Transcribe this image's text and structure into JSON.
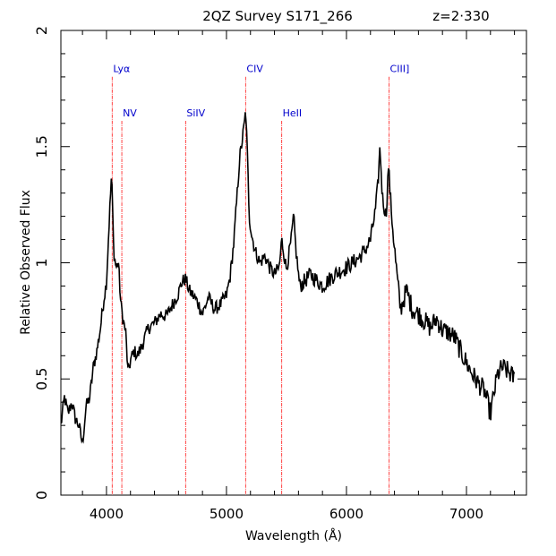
{
  "chart_data": {
    "type": "line",
    "title": "2QZ Survey S171_266",
    "redshift_label": "z=2·330",
    "xlabel": "Wavelength (Å)",
    "ylabel": "Relative Observed Flux",
    "xlim": [
      3620,
      7500
    ],
    "ylim": [
      0,
      2
    ],
    "xticks_major": [
      4000,
      5000,
      6000,
      7000
    ],
    "xtick_labels": [
      "4000",
      "5000",
      "6000",
      "7000"
    ],
    "yticks_major": [
      0,
      0.5,
      1,
      1.5,
      2
    ],
    "ytick_labels": [
      "0",
      "0.5",
      "1",
      "1.5",
      "2"
    ],
    "grid": false,
    "line_color": "#000000",
    "marker_color": "#ff4444",
    "label_color": "#0000cc",
    "emission_lines": [
      {
        "label": "Lyα",
        "x": 4048,
        "label_y": 1.82
      },
      {
        "label": "NV",
        "x": 4128,
        "label_y": 1.63
      },
      {
        "label": "SiIV",
        "x": 4660,
        "label_y": 1.63
      },
      {
        "label": "CIV",
        "x": 5160,
        "label_y": 1.82
      },
      {
        "label": "HeII",
        "x": 5460,
        "label_y": 1.63
      },
      {
        "label": "CIII]",
        "x": 6355,
        "label_y": 1.82
      }
    ],
    "spectrum": {
      "x": [
        3620,
        3650,
        3680,
        3710,
        3740,
        3770,
        3800,
        3830,
        3860,
        3890,
        3920,
        3950,
        3980,
        4000,
        4020,
        4040,
        4048,
        4060,
        4080,
        4100,
        4120,
        4140,
        4160,
        4180,
        4200,
        4230,
        4260,
        4300,
        4350,
        4400,
        4450,
        4500,
        4550,
        4600,
        4630,
        4660,
        4690,
        4720,
        4760,
        4800,
        4850,
        4900,
        4950,
        5000,
        5030,
        5060,
        5090,
        5110,
        5130,
        5150,
        5160,
        5175,
        5190,
        5210,
        5240,
        5280,
        5320,
        5360,
        5400,
        5440,
        5460,
        5500,
        5540,
        5560,
        5580,
        5610,
        5650,
        5700,
        5800,
        5900,
        6000,
        6050,
        6100,
        6150,
        6200,
        6240,
        6260,
        6280,
        6300,
        6330,
        6350,
        6370,
        6390,
        6420,
        6450,
        6500,
        6550,
        6600,
        6650,
        6700,
        6750,
        6800,
        6850,
        6900,
        6950,
        7000,
        7050,
        7100,
        7150,
        7200,
        7230,
        7260,
        7300,
        7350,
        7400
      ],
      "y": [
        0.3,
        0.42,
        0.35,
        0.4,
        0.33,
        0.3,
        0.22,
        0.38,
        0.42,
        0.55,
        0.62,
        0.72,
        0.85,
        0.92,
        1.15,
        1.36,
        1.3,
        1.05,
        0.98,
        1.0,
        0.82,
        0.75,
        0.7,
        0.52,
        0.58,
        0.62,
        0.6,
        0.65,
        0.72,
        0.74,
        0.78,
        0.77,
        0.82,
        0.87,
        0.92,
        0.93,
        0.88,
        0.86,
        0.83,
        0.78,
        0.85,
        0.8,
        0.82,
        0.86,
        0.94,
        1.08,
        1.3,
        1.45,
        1.52,
        1.6,
        1.66,
        1.45,
        1.2,
        1.12,
        1.05,
        1.0,
        1.03,
        0.98,
        0.95,
        0.98,
        1.1,
        0.97,
        1.1,
        1.2,
        1.05,
        0.9,
        0.92,
        0.95,
        0.9,
        0.95,
        0.98,
        1.0,
        1.02,
        1.05,
        1.1,
        1.22,
        1.32,
        1.5,
        1.28,
        1.2,
        1.42,
        1.25,
        1.12,
        0.95,
        0.8,
        0.88,
        0.8,
        0.78,
        0.75,
        0.72,
        0.76,
        0.71,
        0.7,
        0.68,
        0.62,
        0.57,
        0.52,
        0.48,
        0.45,
        0.35,
        0.44,
        0.52,
        0.55,
        0.53,
        0.5
      ]
    }
  }
}
